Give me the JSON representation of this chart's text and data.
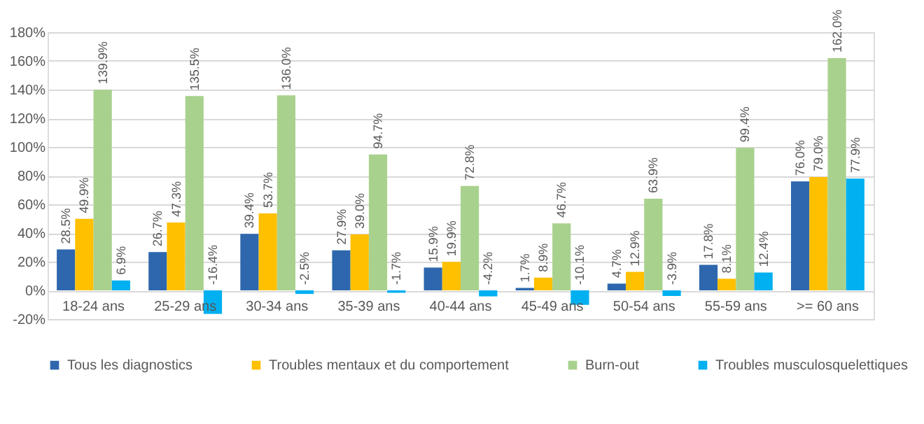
{
  "chart_data": {
    "type": "bar",
    "categories": [
      "18-24 ans",
      "25-29 ans",
      "30-34 ans",
      "35-39 ans",
      "40-44 ans",
      "45-49 ans",
      "50-54 ans",
      "55-59 ans",
      ">= 60 ans"
    ],
    "series": [
      {
        "name": "Tous les diagnostics",
        "color": "#2e67ad",
        "values": [
          28.5,
          26.7,
          39.4,
          27.9,
          15.9,
          1.7,
          4.7,
          17.8,
          76.0
        ],
        "value_labels": [
          "28.5%",
          "26.7%",
          "39.4%",
          "27.9%",
          "15.9%",
          "1.7%",
          "4.7%",
          "17.8%",
          "76.0%"
        ]
      },
      {
        "name": "Troubles mentaux et du comportement",
        "color": "#ffc000",
        "values": [
          49.9,
          47.3,
          53.7,
          39.0,
          19.9,
          8.9,
          12.9,
          8.1,
          79.0
        ],
        "value_labels": [
          "49.9%",
          "47.3%",
          "53.7%",
          "39.0%",
          "19.9%",
          "8.9%",
          "12.9%",
          "8.1%",
          "79.0%"
        ]
      },
      {
        "name": "Burn-out",
        "color": "#a9d18e",
        "values": [
          139.9,
          135.5,
          136.0,
          94.7,
          72.8,
          46.7,
          63.9,
          99.4,
          162.0
        ],
        "value_labels": [
          "139.9%",
          "135.5%",
          "136.0%",
          "94.7%",
          "72.8%",
          "46.7%",
          "63.9%",
          "99.4%",
          "162.0%"
        ]
      },
      {
        "name": "Troubles musculosquelettiques",
        "color": "#00b0f0",
        "values": [
          6.9,
          -16.4,
          -2.5,
          -1.7,
          -4.2,
          -10.1,
          -3.9,
          12.4,
          77.9
        ],
        "value_labels": [
          "6.9%",
          "-16.4%",
          "-2.5%",
          "-1.7%",
          "-4.2%",
          "-10.1%",
          "-3.9%",
          "12.4%",
          "77.9%"
        ]
      }
    ],
    "ylim": [
      -20,
      180
    ],
    "yticks": [
      {
        "value": -20,
        "label": "-20%"
      },
      {
        "value": 0,
        "label": "0%"
      },
      {
        "value": 20,
        "label": "20%"
      },
      {
        "value": 40,
        "label": "40%"
      },
      {
        "value": 60,
        "label": "60%"
      },
      {
        "value": 80,
        "label": "80%"
      },
      {
        "value": 100,
        "label": "100%"
      },
      {
        "value": 120,
        "label": "120%"
      },
      {
        "value": 140,
        "label": "140%"
      },
      {
        "value": 160,
        "label": "160%"
      },
      {
        "value": 180,
        "label": "180%"
      }
    ],
    "grid": "y",
    "legend": "bottom"
  }
}
